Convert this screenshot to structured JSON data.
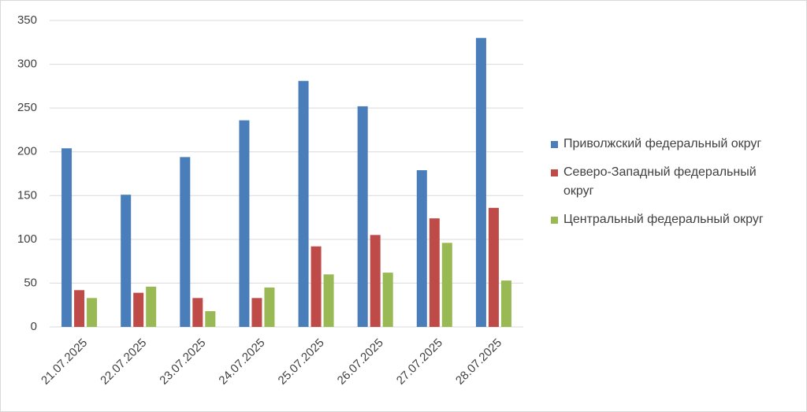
{
  "chart_data": {
    "type": "bar",
    "categories": [
      "21.07.2025",
      "22.07.2025",
      "23.07.2025",
      "24.07.2025",
      "25.07.2025",
      "26.07.2025",
      "27.07.2025",
      "28.07.2025"
    ],
    "series": [
      {
        "name": "Приволжский федеральный округ",
        "color": "#4a7ebb",
        "values": [
          204,
          151,
          194,
          236,
          281,
          252,
          179,
          330
        ]
      },
      {
        "name": "Северо-Западный федеральный округ",
        "color": "#be4b48",
        "values": [
          42,
          39,
          33,
          33,
          92,
          105,
          124,
          136
        ]
      },
      {
        "name": "Центральный федеральный округ",
        "color": "#98b954",
        "values": [
          33,
          46,
          18,
          45,
          60,
          62,
          96,
          53
        ]
      }
    ],
    "ylim": [
      0,
      350
    ],
    "yticks": [
      0,
      50,
      100,
      150,
      200,
      250,
      300,
      350
    ],
    "grid": true,
    "legend": "right"
  }
}
